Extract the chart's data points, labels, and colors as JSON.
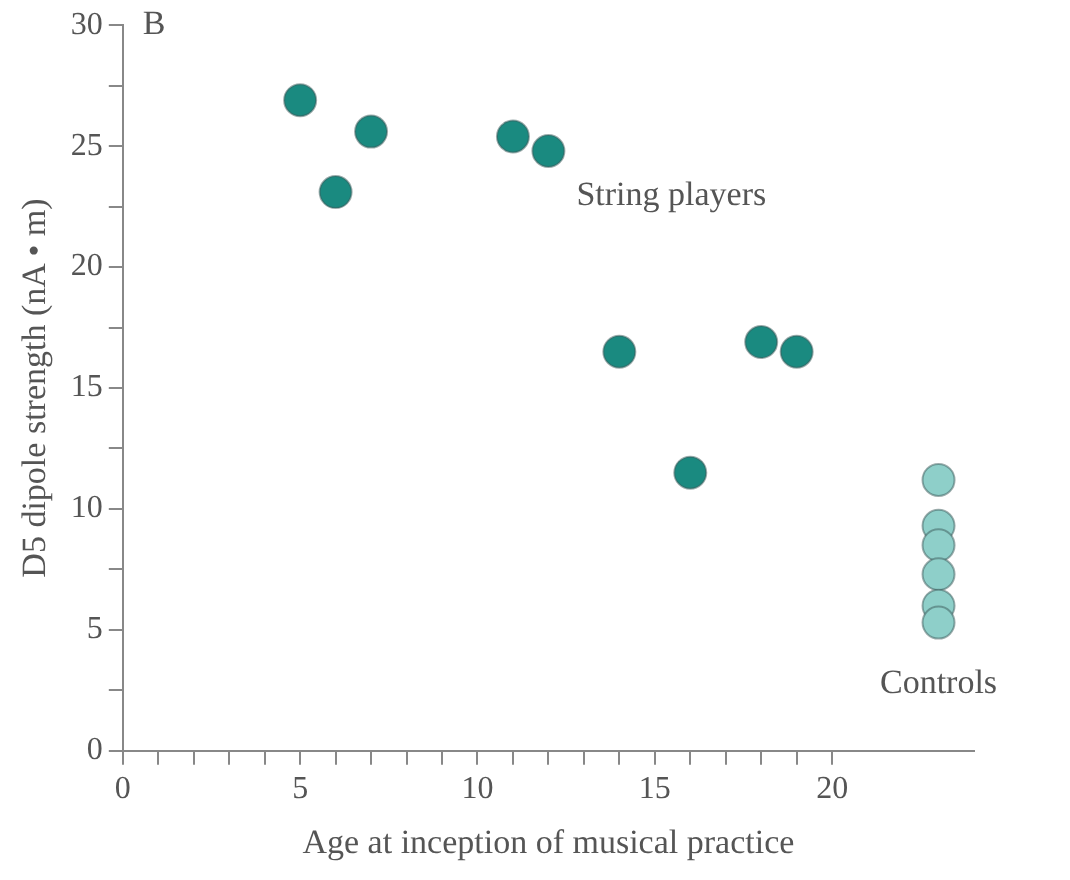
{
  "chart_data": {
    "type": "scatter",
    "title": "B",
    "xlabel": "Age at inception of musical practice",
    "ylabel": "D5 dipole strength (nA • m)",
    "xlim": [
      0,
      24
    ],
    "xticks": [
      0,
      {
        "value": 1,
        "label": null
      },
      {
        "value": 2,
        "label": null
      },
      {
        "value": 3,
        "label": null
      },
      {
        "value": 4,
        "label": null
      },
      5,
      {
        "value": 6,
        "label": null
      },
      {
        "value": 7,
        "label": null
      },
      {
        "value": 8,
        "label": null
      },
      {
        "value": 9,
        "label": null
      },
      10,
      {
        "value": 11,
        "label": null
      },
      {
        "value": 12,
        "label": null
      },
      {
        "value": 13,
        "label": null
      },
      {
        "value": 14,
        "label": null
      },
      15,
      {
        "value": 16,
        "label": null
      },
      {
        "value": 17,
        "label": null
      },
      {
        "value": 18,
        "label": null
      },
      {
        "value": 19,
        "label": null
      },
      20
    ],
    "ylim": [
      0,
      30
    ],
    "yticks": [
      0,
      {
        "value": 2.5,
        "label": null
      },
      5,
      {
        "value": 7.5,
        "label": null
      },
      10,
      {
        "value": 12.5,
        "label": null
      },
      15,
      {
        "value": 17.5,
        "label": null
      },
      20,
      {
        "value": 22.5,
        "label": null
      },
      25,
      {
        "value": 27.5,
        "label": null
      },
      30
    ],
    "grid": false,
    "legend": false,
    "marker": "circle",
    "series": [
      {
        "name": "String players",
        "color": "#1a8a80",
        "x": [
          5,
          6,
          7,
          11,
          12,
          14,
          16,
          18,
          19
        ],
        "values": [
          26.9,
          23.1,
          25.6,
          25.4,
          24.8,
          16.5,
          11.5,
          16.9,
          16.5
        ]
      },
      {
        "name": "Controls",
        "color": "#8ecfc9",
        "x": [
          23,
          23,
          23,
          23,
          23,
          23
        ],
        "values": [
          11.2,
          9.3,
          8.5,
          7.3,
          6,
          5.3
        ]
      }
    ]
  }
}
